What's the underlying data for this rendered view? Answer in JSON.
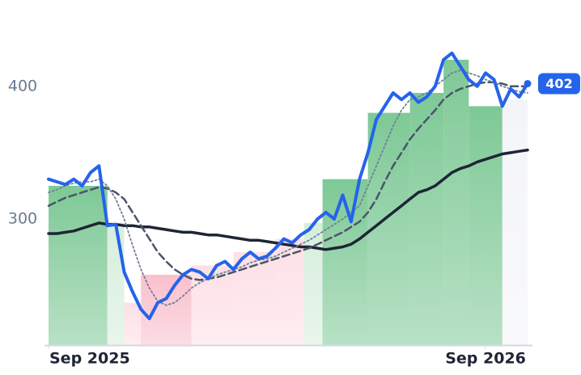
{
  "chart_data": {
    "type": "line",
    "x": [
      0,
      1,
      2,
      3,
      4,
      5,
      6,
      7,
      8,
      9,
      10,
      11,
      12,
      13,
      14,
      15,
      16,
      17,
      18,
      19,
      20,
      21,
      22,
      23,
      24,
      25,
      26,
      27,
      28,
      29,
      30,
      31,
      32,
      33,
      34,
      35,
      36,
      37,
      38,
      39,
      40,
      41,
      42,
      43,
      44,
      45,
      46,
      47,
      48,
      49,
      50,
      51,
      52,
      53,
      54,
      55,
      56,
      57
    ],
    "xlim": [
      0,
      57
    ],
    "xticks": [
      {
        "value": 0,
        "label": "Sep 2025"
      },
      {
        "value": 52,
        "label": "Sep 2026"
      }
    ],
    "ylim": [
      205,
      465
    ],
    "yticks": [
      300,
      400
    ],
    "steps": [
      {
        "x0": 0,
        "x1": 7,
        "value": 325,
        "color": "#7ec996"
      },
      {
        "x0": 7,
        "x1": 9,
        "value": 297,
        "color": "#d6eedd"
      },
      {
        "x0": 9,
        "x1": 11,
        "value": 237,
        "color": "#fde0e6"
      },
      {
        "x0": 11,
        "x1": 17,
        "value": 258,
        "color": "#f9c0cc"
      },
      {
        "x0": 17,
        "x1": 22,
        "value": 265,
        "color": "#fde0e6"
      },
      {
        "x0": 22,
        "x1": 27,
        "value": 275,
        "color": "#fde0e6"
      },
      {
        "x0": 27,
        "x1": 30.4,
        "value": 285,
        "color": "#fde0e6"
      },
      {
        "x0": 30.4,
        "x1": 32.6,
        "value": 297,
        "color": "#d6eedd"
      },
      {
        "x0": 32.6,
        "x1": 38,
        "value": 330,
        "color": "#7ec996"
      },
      {
        "x0": 38,
        "x1": 43,
        "value": 380,
        "color": "#7ec996"
      },
      {
        "x0": 43,
        "x1": 47,
        "value": 395,
        "color": "#7ec996"
      },
      {
        "x0": 47,
        "x1": 50,
        "value": 420,
        "color": "#7ec996"
      },
      {
        "x0": 50,
        "x1": 54,
        "value": 385,
        "color": "#7ec996"
      },
      {
        "x0": 54,
        "x1": 57,
        "value": 390,
        "color": "#f4f5f9"
      }
    ],
    "series": [
      {
        "color": "#1e2535",
        "style": "solid",
        "width": 3.5,
        "values": [
          289,
          289,
          290,
          291,
          293,
          295,
          297,
          296,
          296,
          295,
          295,
          294,
          294,
          293,
          292,
          291,
          290,
          290,
          289,
          288,
          288,
          287,
          286,
          285,
          284,
          284,
          283,
          282,
          281,
          280,
          279,
          279,
          278,
          277,
          278,
          279,
          281,
          285,
          290,
          295,
          300,
          305,
          310,
          315,
          320,
          322,
          325,
          330,
          335,
          338,
          340,
          343,
          345,
          347,
          349,
          350,
          351,
          352
        ]
      },
      {
        "color": "#4a5568",
        "style": "dashed",
        "width": 2.5,
        "values": [
          310,
          313,
          316,
          318,
          320,
          322,
          324,
          323,
          320,
          315,
          305,
          295,
          285,
          275,
          268,
          262,
          258,
          255,
          254,
          255,
          256,
          258,
          260,
          262,
          264,
          266,
          268,
          270,
          272,
          274,
          276,
          278,
          281,
          284,
          287,
          290,
          294,
          298,
          305,
          315,
          328,
          340,
          350,
          360,
          368,
          375,
          382,
          390,
          395,
          398,
          400,
          402,
          403,
          403,
          402,
          400,
          400,
          400
        ]
      },
      {
        "color": "#718096",
        "style": "dotted",
        "width": 1.8,
        "values": [
          320,
          322,
          325,
          327,
          328,
          328,
          330,
          325,
          315,
          300,
          280,
          262,
          248,
          238,
          235,
          237,
          242,
          248,
          252,
          255,
          258,
          260,
          262,
          264,
          267,
          269,
          270,
          272,
          275,
          278,
          281,
          284,
          288,
          292,
          296,
          300,
          305,
          310,
          325,
          340,
          355,
          370,
          382,
          390,
          392,
          395,
          400,
          405,
          410,
          412,
          410,
          408,
          405,
          403,
          400,
          398,
          396,
          395
        ]
      },
      {
        "color": "#2563eb",
        "style": "solid",
        "width": 4,
        "values": [
          330,
          328,
          326,
          330,
          325,
          335,
          340,
          295,
          296,
          260,
          245,
          232,
          225,
          237,
          240,
          250,
          258,
          262,
          260,
          255,
          265,
          268,
          262,
          270,
          275,
          270,
          272,
          278,
          285,
          282,
          288,
          292,
          300,
          305,
          300,
          318,
          298,
          330,
          350,
          375,
          385,
          395,
          390,
          395,
          388,
          392,
          400,
          420,
          425,
          415,
          405,
          400,
          410,
          405,
          385,
          398,
          392,
          402
        ]
      }
    ]
  }
}
